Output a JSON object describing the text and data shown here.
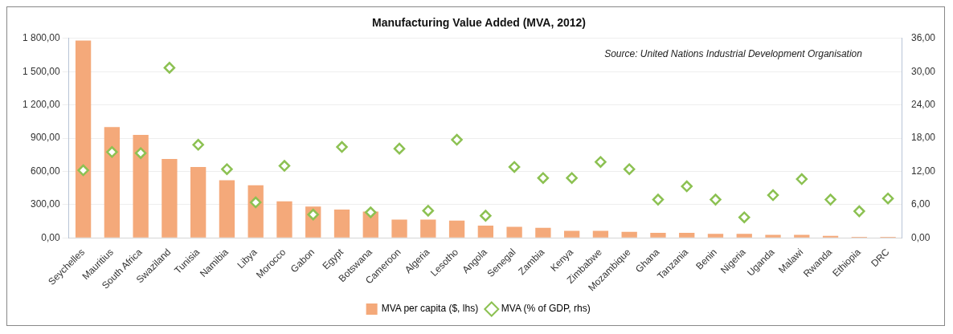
{
  "chart_data": {
    "type": "bar",
    "title": "Manufacturing Value Added (MVA, 2012)",
    "categories": [
      "Seychelles",
      "Mauritius",
      "South Africa",
      "Swaziland",
      "Tunisia",
      "Namibia",
      "Libya",
      "Morocco",
      "Gabon",
      "Egypt",
      "Botswana",
      "Cameroon",
      "Algeria",
      "Lesotho",
      "Angola",
      "Senegal",
      "Zambia",
      "Kenya",
      "Zimbabwe",
      "Mozambique",
      "Ghana",
      "Tanzania",
      "Benin",
      "Nigeria",
      "Uganda",
      "Malawi",
      "Rwanda",
      "Ethiopia",
      "DRC"
    ],
    "series": [
      {
        "name": "MVA per capita ($, lhs)",
        "color": "#f4a97a",
        "values": [
          1780,
          1000,
          930,
          712,
          640,
          520,
          475,
          330,
          283,
          256,
          238,
          165,
          165,
          155,
          110,
          100,
          90,
          64,
          64,
          55,
          46,
          46,
          37,
          37,
          27,
          27,
          18,
          9,
          9
        ]
      },
      {
        "name": "MVA (% of GDP, rhs)",
        "type": "scatter",
        "axis": "y2",
        "marker": "diamond",
        "color": "#8cc152",
        "values": [
          12.2,
          15.5,
          15.3,
          30.7,
          16.8,
          12.4,
          6.4,
          13.0,
          4.2,
          16.4,
          4.6,
          16.1,
          4.9,
          17.7,
          4.0,
          12.8,
          10.8,
          10.8,
          13.7,
          12.4,
          6.9,
          9.3,
          6.9,
          3.7,
          7.7,
          10.6,
          6.9,
          4.8,
          7.1
        ]
      }
    ],
    "ylim": [
      0,
      1800
    ],
    "yticks": [
      {
        "value": 0,
        "label": "0,00"
      },
      {
        "value": 300,
        "label": "300,00"
      },
      {
        "value": 600,
        "label": "600,00"
      },
      {
        "value": 900,
        "label": "900,00"
      },
      {
        "value": 1200,
        "label": "1 200,00"
      },
      {
        "value": 1500,
        "label": "1 500,00"
      },
      {
        "value": 1800,
        "label": "1 800,00"
      }
    ],
    "y2lim": [
      0,
      36
    ],
    "y2ticks": [
      {
        "value": 0,
        "label": "0,00"
      },
      {
        "value": 6,
        "label": "6,00"
      },
      {
        "value": 12,
        "label": "12,00"
      },
      {
        "value": 18,
        "label": "18,00"
      },
      {
        "value": 24,
        "label": "24,00"
      },
      {
        "value": 30,
        "label": "30,00"
      },
      {
        "value": 36,
        "label": "36,00"
      }
    ],
    "grid": "y",
    "legend": "bottom",
    "annotations": [
      "Source: United Nations Industrial Development Organisation"
    ]
  }
}
